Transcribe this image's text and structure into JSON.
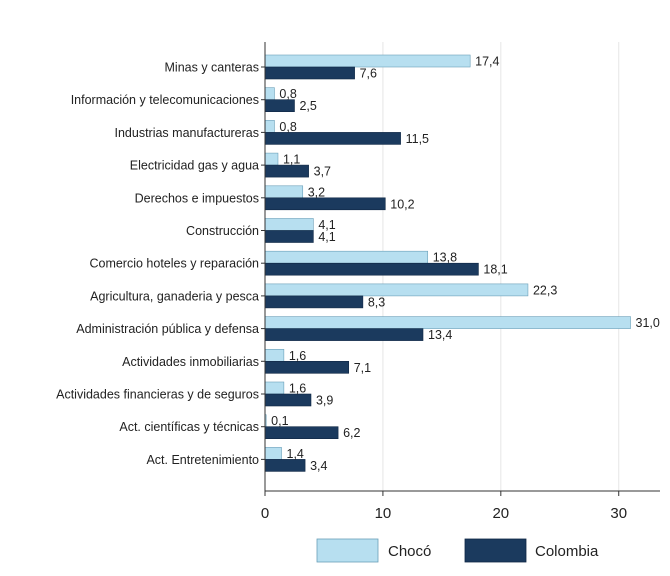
{
  "chart_data": {
    "type": "bar",
    "orientation": "horizontal",
    "categories": [
      "Minas y canteras",
      "Información y telecomunicaciones",
      "Industrias manufactureras",
      "Electricidad gas y agua",
      "Derechos e impuestos",
      "Construcción",
      "Comercio hoteles y reparación",
      "Agricultura, ganaderia y pesca",
      "Administración pública y defensa",
      "Actividades inmobiliarias",
      "Actividades financieras y de seguros",
      "Act. científicas y técnicas",
      "Act. Entretenimiento"
    ],
    "series": [
      {
        "name": "Chocó",
        "color": "#b7dff0",
        "values": [
          17.4,
          0.8,
          0.8,
          1.1,
          3.2,
          4.1,
          13.8,
          22.3,
          31.0,
          1.6,
          1.6,
          0.1,
          1.4
        ],
        "labels": [
          "17,4",
          "0,8",
          "0,8",
          "1,1",
          "3,2",
          "4,1",
          "13,8",
          "22,3",
          "31,0",
          "1,6",
          "1,6",
          "0,1",
          "1,4"
        ]
      },
      {
        "name": "Colombia",
        "color": "#1b3a5e",
        "values": [
          7.6,
          2.5,
          11.5,
          3.7,
          10.2,
          4.1,
          18.1,
          8.3,
          13.4,
          7.1,
          3.9,
          6.2,
          3.4
        ],
        "labels": [
          "7,6",
          "2,5",
          "11,5",
          "3,7",
          "10,2",
          "4,1",
          "18,1",
          "8,3",
          "13,4",
          "7,1",
          "3,9",
          "6,2",
          "3,4"
        ]
      }
    ],
    "x_ticks": [
      0,
      10,
      20,
      30
    ],
    "xlim": [
      0,
      33.5
    ],
    "grid": "vertical",
    "legend_position": "bottom",
    "title": "",
    "xlabel": "",
    "ylabel": ""
  }
}
